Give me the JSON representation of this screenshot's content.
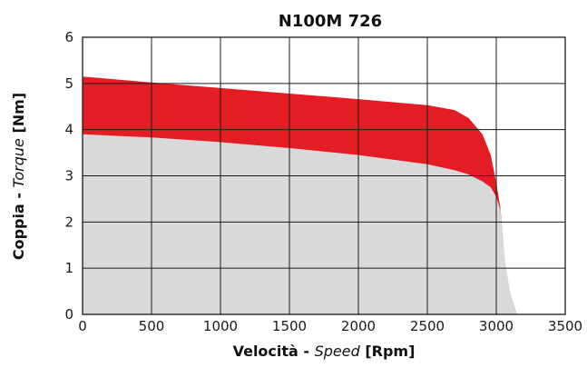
{
  "chart_data": {
    "type": "area",
    "title": "N100M  726",
    "xlabel": {
      "prefix": "Velocità - ",
      "italic": "Speed",
      "suffix": " [Rpm]"
    },
    "ylabel": {
      "prefix": "Coppia - ",
      "italic": "Torque",
      "suffix": " [Nm]"
    },
    "xlim": [
      0,
      3500
    ],
    "ylim": [
      0,
      6
    ],
    "xticks": [
      "0",
      "500",
      "1000",
      "1500",
      "2000",
      "2500",
      "3000",
      "3500"
    ],
    "yticks": [
      "0",
      "1",
      "2",
      "3",
      "4",
      "5",
      "6"
    ],
    "grid": true,
    "series": [
      {
        "color": "#e31d23",
        "points": [
          [
            0,
            5.15
          ],
          [
            500,
            5.02
          ],
          [
            1000,
            4.9
          ],
          [
            1500,
            4.78
          ],
          [
            2000,
            4.66
          ],
          [
            2500,
            4.53
          ],
          [
            2700,
            4.42
          ],
          [
            2800,
            4.25
          ],
          [
            2900,
            3.9
          ],
          [
            2960,
            3.45
          ],
          [
            3000,
            2.85
          ],
          [
            3030,
            2.3
          ],
          [
            3060,
            1.2
          ],
          [
            3100,
            0.45
          ],
          [
            3150,
            0
          ]
        ]
      },
      {
        "color": "#d9d9d9",
        "points": [
          [
            0,
            3.9
          ],
          [
            500,
            3.83
          ],
          [
            1000,
            3.73
          ],
          [
            1500,
            3.6
          ],
          [
            2000,
            3.45
          ],
          [
            2500,
            3.25
          ],
          [
            2700,
            3.12
          ],
          [
            2800,
            3.03
          ],
          [
            2900,
            2.88
          ],
          [
            2960,
            2.75
          ],
          [
            3000,
            2.55
          ],
          [
            3030,
            2.25
          ],
          [
            3060,
            1.25
          ],
          [
            3100,
            0.45
          ],
          [
            3150,
            0
          ]
        ]
      }
    ]
  }
}
